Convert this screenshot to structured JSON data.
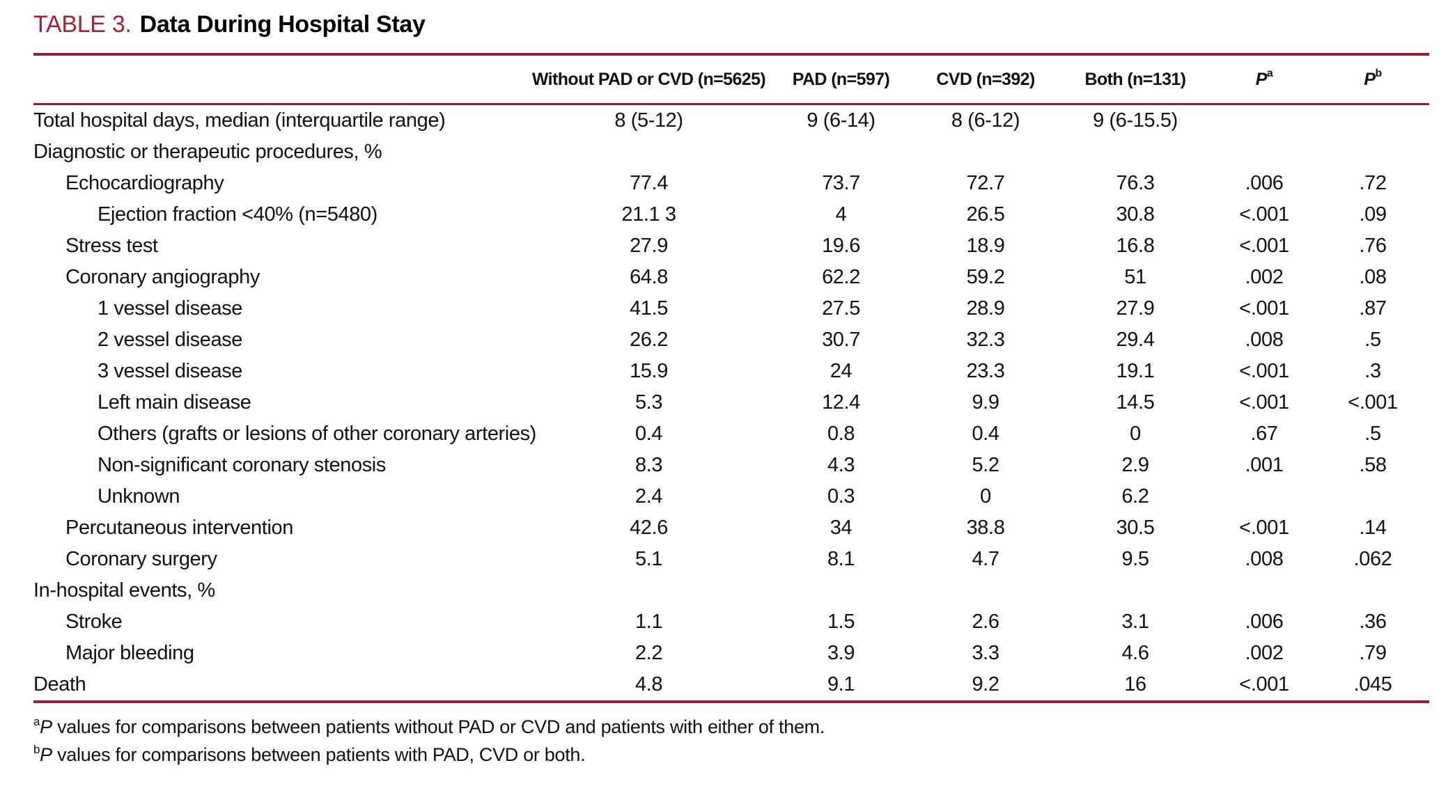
{
  "title": {
    "label": "TABLE 3.",
    "text": "Data During Hospital Stay"
  },
  "header": {
    "label": "",
    "without": "Without PAD or CVD (n=5625)",
    "pad": "PAD (n=597)",
    "cvd": "CVD (n=392)",
    "both": "Both (n=131)",
    "pa": {
      "base": "P",
      "sup": "a"
    },
    "pb": {
      "base": "P",
      "sup": "b"
    }
  },
  "rows": [
    {
      "label": "Total hospital days, median (interquartile range)",
      "indent": 0,
      "values": [
        "8 (5-12)",
        "9 (6-14)",
        "8 (6-12)",
        "9 (6-15.5)",
        "",
        ""
      ]
    },
    {
      "label": "Diagnostic or therapeutic procedures, %",
      "indent": 0,
      "values": [
        "",
        "",
        "",
        "",
        "",
        ""
      ]
    },
    {
      "label": "Echocardiography",
      "indent": 1,
      "values": [
        "77.4",
        "73.7",
        "72.7",
        "76.3",
        ".006",
        ".72"
      ]
    },
    {
      "label": "Ejection fraction <40% (n=5480)",
      "indent": 2,
      "values": [
        "21.1 3",
        "4",
        "26.5",
        "30.8",
        "<.001",
        ".09"
      ]
    },
    {
      "label": "Stress test",
      "indent": 1,
      "values": [
        "27.9",
        "19.6",
        "18.9",
        "16.8",
        "<.001",
        ".76"
      ]
    },
    {
      "label": "Coronary angiography",
      "indent": 1,
      "values": [
        "64.8",
        "62.2",
        "59.2",
        "51",
        ".002",
        ".08"
      ]
    },
    {
      "label": "1 vessel disease",
      "indent": 2,
      "values": [
        "41.5",
        "27.5",
        "28.9",
        "27.9",
        "<.001",
        ".87"
      ]
    },
    {
      "label": "2 vessel disease",
      "indent": 2,
      "values": [
        "26.2",
        "30.7",
        "32.3",
        "29.4",
        ".008",
        ".5"
      ]
    },
    {
      "label": "3 vessel disease",
      "indent": 2,
      "values": [
        "15.9",
        "24",
        "23.3",
        "19.1",
        "<.001",
        ".3"
      ]
    },
    {
      "label": "Left main disease",
      "indent": 2,
      "values": [
        "5.3",
        "12.4",
        "9.9",
        "14.5",
        "<.001",
        "<.001"
      ]
    },
    {
      "label": "Others (grafts or lesions of other coronary arteries)",
      "indent": 2,
      "values": [
        "0.4",
        "0.8",
        "0.4",
        "0",
        ".67",
        ".5"
      ]
    },
    {
      "label": "Non-significant coronary stenosis",
      "indent": 2,
      "values": [
        "8.3",
        "4.3",
        "5.2",
        "2.9",
        ".001",
        ".58"
      ]
    },
    {
      "label": "Unknown",
      "indent": 2,
      "values": [
        "2.4",
        "0.3",
        "0",
        "6.2",
        "",
        ""
      ]
    },
    {
      "label": "Percutaneous intervention",
      "indent": 1,
      "values": [
        "42.6",
        "34",
        "38.8",
        "30.5",
        "<.001",
        ".14"
      ]
    },
    {
      "label": "Coronary surgery",
      "indent": 1,
      "values": [
        "5.1",
        "8.1",
        "4.7",
        "9.5",
        ".008",
        ".062"
      ]
    },
    {
      "label": "In-hospital events, %",
      "indent": 0,
      "values": [
        "",
        "",
        "",
        "",
        "",
        ""
      ]
    },
    {
      "label": "Stroke",
      "indent": 1,
      "values": [
        "1.1",
        "1.5",
        "2.6",
        "3.1",
        ".006",
        ".36"
      ]
    },
    {
      "label": "Major bleeding",
      "indent": 1,
      "values": [
        "2.2",
        "3.9",
        "3.3",
        "4.6",
        ".002",
        ".79"
      ]
    },
    {
      "label": "Death",
      "indent": 0,
      "values": [
        "4.8",
        "9.1",
        "9.2",
        "16",
        "<.001",
        ".045"
      ]
    }
  ],
  "footnotes": [
    {
      "sup": "a",
      "p": "P",
      "text": " values for comparisons between patients without PAD or CVD and patients with either of them."
    },
    {
      "sup": "b",
      "p": "P",
      "text": " values for comparisons between patients with PAD, CVD or both."
    }
  ],
  "colors": {
    "accent_rule": "#8e2133",
    "accent_title": "#9c2638",
    "body_text": "#121212"
  }
}
